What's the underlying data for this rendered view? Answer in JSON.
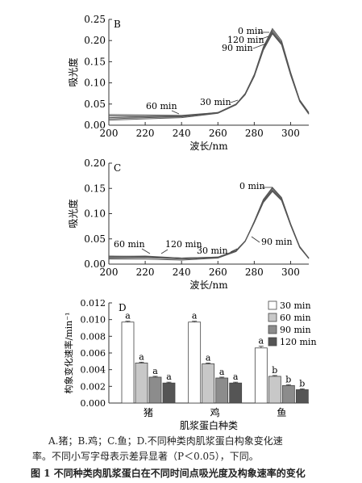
{
  "chart_data": [
    {
      "type": "line",
      "panel_label": "B",
      "xlabel": "波长/nm",
      "ylabel": "吸光度",
      "xlim": [
        200,
        310
      ],
      "ylim": [
        0,
        0.25
      ],
      "xticks": [
        "200",
        "220",
        "240",
        "260",
        "280",
        "300"
      ],
      "yticks": [
        "0.00",
        "0.05",
        "0.10",
        "0.15",
        "0.20",
        "0.25"
      ],
      "series": [
        {
          "name": "0 min",
          "x": [
            200,
            220,
            240,
            260,
            270,
            275,
            280,
            285,
            290,
            295,
            300,
            305,
            310
          ],
          "y": [
            0.022,
            0.021,
            0.022,
            0.03,
            0.05,
            0.075,
            0.12,
            0.185,
            0.228,
            0.2,
            0.125,
            0.06,
            0.03
          ]
        },
        {
          "name": "30 min",
          "x": [
            200,
            220,
            240,
            260,
            270,
            275,
            280,
            285,
            290,
            295,
            300,
            305,
            310
          ],
          "y": [
            0.025,
            0.024,
            0.023,
            0.03,
            0.05,
            0.074,
            0.118,
            0.182,
            0.224,
            0.196,
            0.122,
            0.058,
            0.028
          ]
        },
        {
          "name": "60 min",
          "x": [
            200,
            220,
            240,
            260,
            270,
            275,
            280,
            285,
            290,
            295,
            300,
            305,
            310
          ],
          "y": [
            0.015,
            0.018,
            0.02,
            0.029,
            0.049,
            0.073,
            0.117,
            0.18,
            0.22,
            0.193,
            0.12,
            0.057,
            0.027
          ]
        },
        {
          "name": "90 min",
          "x": [
            200,
            220,
            240,
            260,
            270,
            275,
            280,
            285,
            290,
            295,
            300,
            305,
            310
          ],
          "y": [
            0.012,
            0.015,
            0.018,
            0.028,
            0.048,
            0.072,
            0.115,
            0.177,
            0.216,
            0.19,
            0.118,
            0.056,
            0.026
          ]
        },
        {
          "name": "120 min",
          "x": [
            200,
            220,
            240,
            260,
            270,
            275,
            280,
            285,
            290,
            295,
            300,
            305,
            310
          ],
          "y": [
            0.018,
            0.02,
            0.021,
            0.029,
            0.049,
            0.073,
            0.116,
            0.179,
            0.218,
            0.192,
            0.119,
            0.057,
            0.027
          ]
        }
      ],
      "annotations": [
        "0 min",
        "120 min",
        "90 min",
        "60 min",
        "30 min"
      ]
    },
    {
      "type": "line",
      "panel_label": "C",
      "xlabel": "波长/nm",
      "ylabel": "吸光度",
      "xlim": [
        200,
        310
      ],
      "ylim": [
        0,
        0.2
      ],
      "xticks": [
        "200",
        "220",
        "240",
        "260",
        "280",
        "300"
      ],
      "yticks": [
        "0.00",
        "0.05",
        "0.10",
        "0.15",
        "0.20"
      ],
      "series": [
        {
          "name": "0 min",
          "x": [
            200,
            220,
            240,
            260,
            270,
            275,
            280,
            285,
            290,
            295,
            300,
            305,
            310
          ],
          "y": [
            0.01,
            0.01,
            0.008,
            0.012,
            0.025,
            0.045,
            0.085,
            0.128,
            0.152,
            0.132,
            0.08,
            0.035,
            0.012
          ]
        },
        {
          "name": "30 min",
          "x": [
            200,
            220,
            240,
            260,
            270,
            275,
            280,
            285,
            290,
            295,
            300,
            305,
            310
          ],
          "y": [
            0.012,
            0.013,
            0.01,
            0.013,
            0.026,
            0.046,
            0.084,
            0.126,
            0.15,
            0.13,
            0.079,
            0.034,
            0.012
          ]
        },
        {
          "name": "60 min",
          "x": [
            200,
            220,
            240,
            260,
            270,
            275,
            280,
            285,
            290,
            295,
            300,
            305,
            310
          ],
          "y": [
            0.016,
            0.015,
            0.012,
            0.014,
            0.027,
            0.046,
            0.083,
            0.124,
            0.147,
            0.128,
            0.078,
            0.034,
            0.011
          ]
        },
        {
          "name": "90 min",
          "x": [
            200,
            220,
            240,
            260,
            270,
            275,
            280,
            285,
            290,
            295,
            300,
            305,
            310
          ],
          "y": [
            0.014,
            0.014,
            0.012,
            0.013,
            0.026,
            0.045,
            0.082,
            0.122,
            0.144,
            0.126,
            0.077,
            0.033,
            0.011
          ]
        },
        {
          "name": "120 min",
          "x": [
            200,
            220,
            240,
            260,
            270,
            275,
            280,
            285,
            290,
            295,
            300,
            305,
            310
          ],
          "y": [
            0.015,
            0.016,
            0.012,
            0.014,
            0.027,
            0.046,
            0.083,
            0.123,
            0.146,
            0.127,
            0.077,
            0.033,
            0.011
          ]
        }
      ],
      "annotations": [
        "0 min",
        "90 min",
        "60 min",
        "120 min",
        "30 min"
      ]
    },
    {
      "type": "bar",
      "panel_label": "D",
      "categories": [
        "猪",
        "鸡",
        "鱼"
      ],
      "xlabel": "肌浆蛋白种类",
      "ylabel": "构象变化速率/min⁻¹",
      "ylim": [
        0,
        0.012
      ],
      "yticks": [
        "0.000",
        "0.002",
        "0.004",
        "0.006",
        "0.008",
        "0.010",
        "0.012"
      ],
      "legend_position": "top-right",
      "series": [
        {
          "name": "30 min",
          "color": "#ffffff",
          "values": [
            0.0097,
            0.0097,
            0.0066
          ],
          "errors": [
            0.0001,
            0.0001,
            0.0002
          ],
          "labels": [
            "a",
            "a",
            "a"
          ]
        },
        {
          "name": "60 min",
          "color": "#c8c8c8",
          "values": [
            0.0048,
            0.0047,
            0.0032
          ],
          "errors": [
            0.0001,
            0.0001,
            0.0001
          ],
          "labels": [
            "a",
            "a",
            "b"
          ]
        },
        {
          "name": "90 min",
          "color": "#8c8c8c",
          "values": [
            0.0031,
            0.003,
            0.0021
          ],
          "errors": [
            0.0001,
            0.0001,
            0.0001
          ],
          "labels": [
            "a",
            "a",
            "b"
          ]
        },
        {
          "name": "120 min",
          "color": "#555555",
          "values": [
            0.0024,
            0.0024,
            0.0016
          ],
          "errors": [
            0.0001,
            0.0001,
            0.0001
          ],
          "labels": [
            "a",
            "a",
            "b"
          ]
        }
      ]
    }
  ],
  "caption": {
    "line1": "A.猪；B.鸡；C.鱼；D.不同种类肉肌浆蛋白构象变化速",
    "line2": "率。不同小写字母表示差异显著（P＜0.05），下同。",
    "line3": "图 1   不同种类肉肌浆蛋白在不同时间点吸光度及构象速率的变化"
  }
}
